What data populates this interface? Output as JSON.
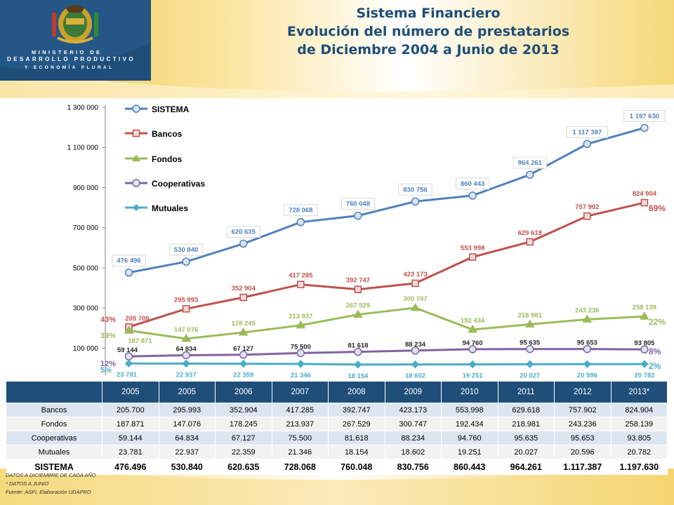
{
  "header": {
    "ministry_line1": "MINISTERIO DE",
    "ministry_line2": "DESARROLLO PRODUCTIVO",
    "ministry_line3": "Y ECONOMÍA PLURAL",
    "title_line1": "Sistema Financiero",
    "title_line2": "Evolución del número de prestatarios",
    "title_line3": "de Diciembre 2004 a Junio de 2013"
  },
  "colors": {
    "sistema": "#4f81bd",
    "bancos": "#c0504d",
    "fondos": "#9bbb59",
    "cooperativas": "#8064a2",
    "mutuales": "#4bacc6",
    "title": "#1f4e79",
    "table_header": "#1f4e79"
  },
  "chart_data": {
    "type": "line",
    "categories": [
      "2005",
      "2005",
      "2006",
      "2007",
      "2008",
      "2009",
      "2010",
      "2011",
      "2012",
      "2013*"
    ],
    "ylim": [
      0,
      1300000
    ],
    "yticks": [
      "100 000",
      "300 000",
      "500 000",
      "700 000",
      "900 000",
      "1 100 000",
      "1 300 000"
    ],
    "ytick_values": [
      100000,
      300000,
      500000,
      700000,
      900000,
      1100000,
      1300000
    ],
    "legend_position": "top-left",
    "series": [
      {
        "name": "SISTEMA",
        "key": "sistema",
        "marker": "circle",
        "values": [
          476496,
          530840,
          620635,
          728068,
          760048,
          830756,
          860443,
          964261,
          1117387,
          1197630
        ],
        "labels": [
          "476 496",
          "530 840",
          "620 635",
          "728 068",
          "760 048",
          "830 756",
          "860 443",
          "964 261",
          "1 117 387",
          "1 197 630"
        ],
        "boxed": true
      },
      {
        "name": "Bancos",
        "key": "bancos",
        "marker": "square",
        "values": [
          205700,
          295993,
          352904,
          417285,
          392747,
          423173,
          553998,
          629618,
          757902,
          824904
        ],
        "labels": [
          "205 700",
          "295 993",
          "352 904",
          "417 285",
          "392 747",
          "423 173",
          "553 998",
          "629 618",
          "757 902",
          "824 904"
        ],
        "share": "69%",
        "start_share": "43%"
      },
      {
        "name": "Fondos",
        "key": "fondos",
        "marker": "triangle",
        "values": [
          187871,
          147076,
          178245,
          213937,
          267529,
          300747,
          192434,
          218981,
          243236,
          258139
        ],
        "labels": [
          "187 871",
          "147 076",
          "178 245",
          "213 937",
          "267 529",
          "300 747",
          "192 434",
          "218 981",
          "243 236",
          "258 139"
        ],
        "share": "22%",
        "start_share": "39%"
      },
      {
        "name": "Cooperativas",
        "key": "cooperativas",
        "marker": "circle",
        "values": [
          59144,
          64834,
          67127,
          75500,
          81618,
          88234,
          94760,
          95635,
          95653,
          93805
        ],
        "labels": [
          "59 144",
          "64 834",
          "67 127",
          "75 500",
          "81 618",
          "88 234",
          "94 760",
          "95 635",
          "95 653",
          "93 805"
        ],
        "share": "8%",
        "start_share": "12%"
      },
      {
        "name": "Mutuales",
        "key": "mutuales",
        "marker": "diamond",
        "values": [
          23781,
          22937,
          22359,
          21346,
          18154,
          18602,
          19251,
          20027,
          20596,
          20782
        ],
        "labels": [
          "23 781",
          "22 937",
          "22 359",
          "21 346",
          "18 154",
          "18 602",
          "19 251",
          "20 027",
          "20 596",
          "20 782"
        ],
        "share": "2%",
        "start_share": "5%"
      }
    ]
  },
  "table": {
    "headers": [
      "",
      "2005",
      "2005",
      "2006",
      "2007",
      "2008",
      "2009",
      "2010",
      "2011",
      "2012",
      "2013*"
    ],
    "rows": [
      {
        "label": "Bancos",
        "cells": [
          "205.700",
          "295.993",
          "352.904",
          "417.285",
          "392.747",
          "423.173",
          "553.998",
          "629.618",
          "757.902",
          "824.904"
        ]
      },
      {
        "label": "Fondos",
        "cells": [
          "187.871",
          "147.076",
          "178.245",
          "213.937",
          "267.529",
          "300.747",
          "192.434",
          "218.981",
          "243.236",
          "258.139"
        ]
      },
      {
        "label": "Cooperativas",
        "cells": [
          "59.144",
          "64.834",
          "67.127",
          "75.500",
          "81.618",
          "88.234",
          "94.760",
          "95.635",
          "95.653",
          "93.805"
        ]
      },
      {
        "label": "Mutuales",
        "cells": [
          "23.781",
          "22.937",
          "22.359",
          "21.346",
          "18.154",
          "18.602",
          "19.251",
          "20.027",
          "20.596",
          "20.782"
        ]
      }
    ],
    "total": {
      "label": "SISTEMA",
      "cells": [
        "476.496",
        "530.840",
        "620.635",
        "728.068",
        "760.048",
        "830.756",
        "860.443",
        "964.261",
        "1.117.387",
        "1.197.630"
      ]
    }
  },
  "notes": {
    "line1": "DATOS A DICIEMBRE DE CADA AÑO",
    "line2": "* DATOS A JUNIO",
    "line3": "Fuente: ASFI, Elaboración UDAPRO"
  }
}
